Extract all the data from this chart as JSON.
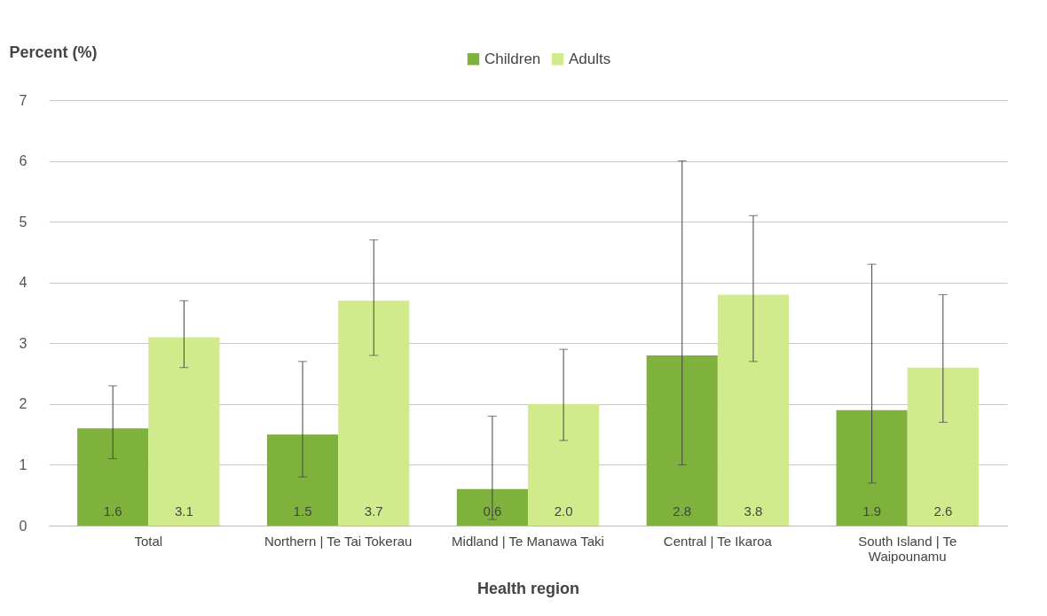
{
  "chart_data": {
    "type": "bar",
    "xlabel": "Health region",
    "ylabel": "Percent (%)",
    "categories": [
      "Total",
      "Northern | Te Tai Tokerau",
      "Midland | Te Manawa Taki",
      "Central | Te Ikaroa",
      "South Island | Te Waipounamu"
    ],
    "series": [
      {
        "name": "Children",
        "color": "#7eb23c",
        "values": [
          1.6,
          1.5,
          0.6,
          2.8,
          1.9
        ],
        "value_labels": [
          "1.6",
          "1.5",
          "0.6",
          "2.8",
          "1.9"
        ],
        "errors": [
          [
            1.1,
            2.3
          ],
          [
            0.8,
            2.7
          ],
          [
            0.1,
            1.8
          ],
          [
            1.0,
            6.0
          ],
          [
            0.7,
            4.3
          ]
        ]
      },
      {
        "name": "Adults",
        "color": "#d0ea8c",
        "values": [
          3.1,
          3.7,
          2.0,
          3.8,
          2.6
        ],
        "value_labels": [
          "3.1",
          "3.7",
          "2.0",
          "3.8",
          "2.6"
        ],
        "errors": [
          [
            2.6,
            3.7
          ],
          [
            2.8,
            4.7
          ],
          [
            1.4,
            2.9
          ],
          [
            2.7,
            5.1
          ],
          [
            1.7,
            3.8
          ]
        ]
      }
    ],
    "ylim": [
      0,
      7
    ],
    "yticks": [
      0,
      1,
      2,
      3,
      4,
      5,
      6,
      7
    ],
    "grid": "y",
    "legend": "top"
  }
}
